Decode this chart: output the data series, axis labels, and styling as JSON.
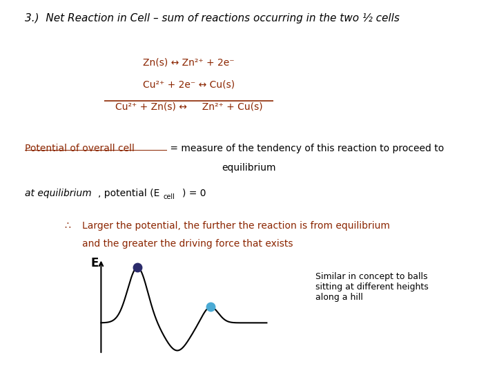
{
  "title": "3.)  Net Reaction in Cell – sum of reactions occurring in the two ½ cells",
  "title_fontsize": 11,
  "title_color": "#000000",
  "title_style": "italic",
  "reaction_line1": "Zn(s) ↔ Zn²⁺ + 2e⁻",
  "reaction_line2": "Cu²⁺ + 2e⁻ ↔ Cu(s)",
  "reaction_line3": "Cu²⁺ + Zn(s) ↔     Zn²⁺ + Cu(s)",
  "reaction_color": "#8B2500",
  "potential_underline": "Potential of overall cell",
  "potential_rest": " = measure of the tendency of this reaction to proceed to",
  "potential_equilibrium": "equilibrium",
  "potential_color": "#8B2500",
  "potential_fontsize": 10,
  "eq_italic": "at equilibrium",
  "eq_normal": ", potential (E",
  "eq_sub": "cell",
  "eq_end": ") = 0",
  "eq_fontsize": 10,
  "therefore_color": "#8B2500",
  "therefore_sym": "∴",
  "therefore_line1": "Larger the potential, the further the reaction is from equilibrium",
  "therefore_line2": "and the greater the driving force that exists",
  "therefore_fontsize": 10,
  "graph_label_E": "E",
  "similar_text": "Similar in concept to balls\nsitting at different heights\nalong a hill",
  "similar_fontsize": 9,
  "bg_color": "#ffffff",
  "dot1_color": "#2B2B6B",
  "dot2_color": "#4AAAD4",
  "curve_color": "#000000",
  "line_color": "#8B2500",
  "underline_color": "#8B2500"
}
